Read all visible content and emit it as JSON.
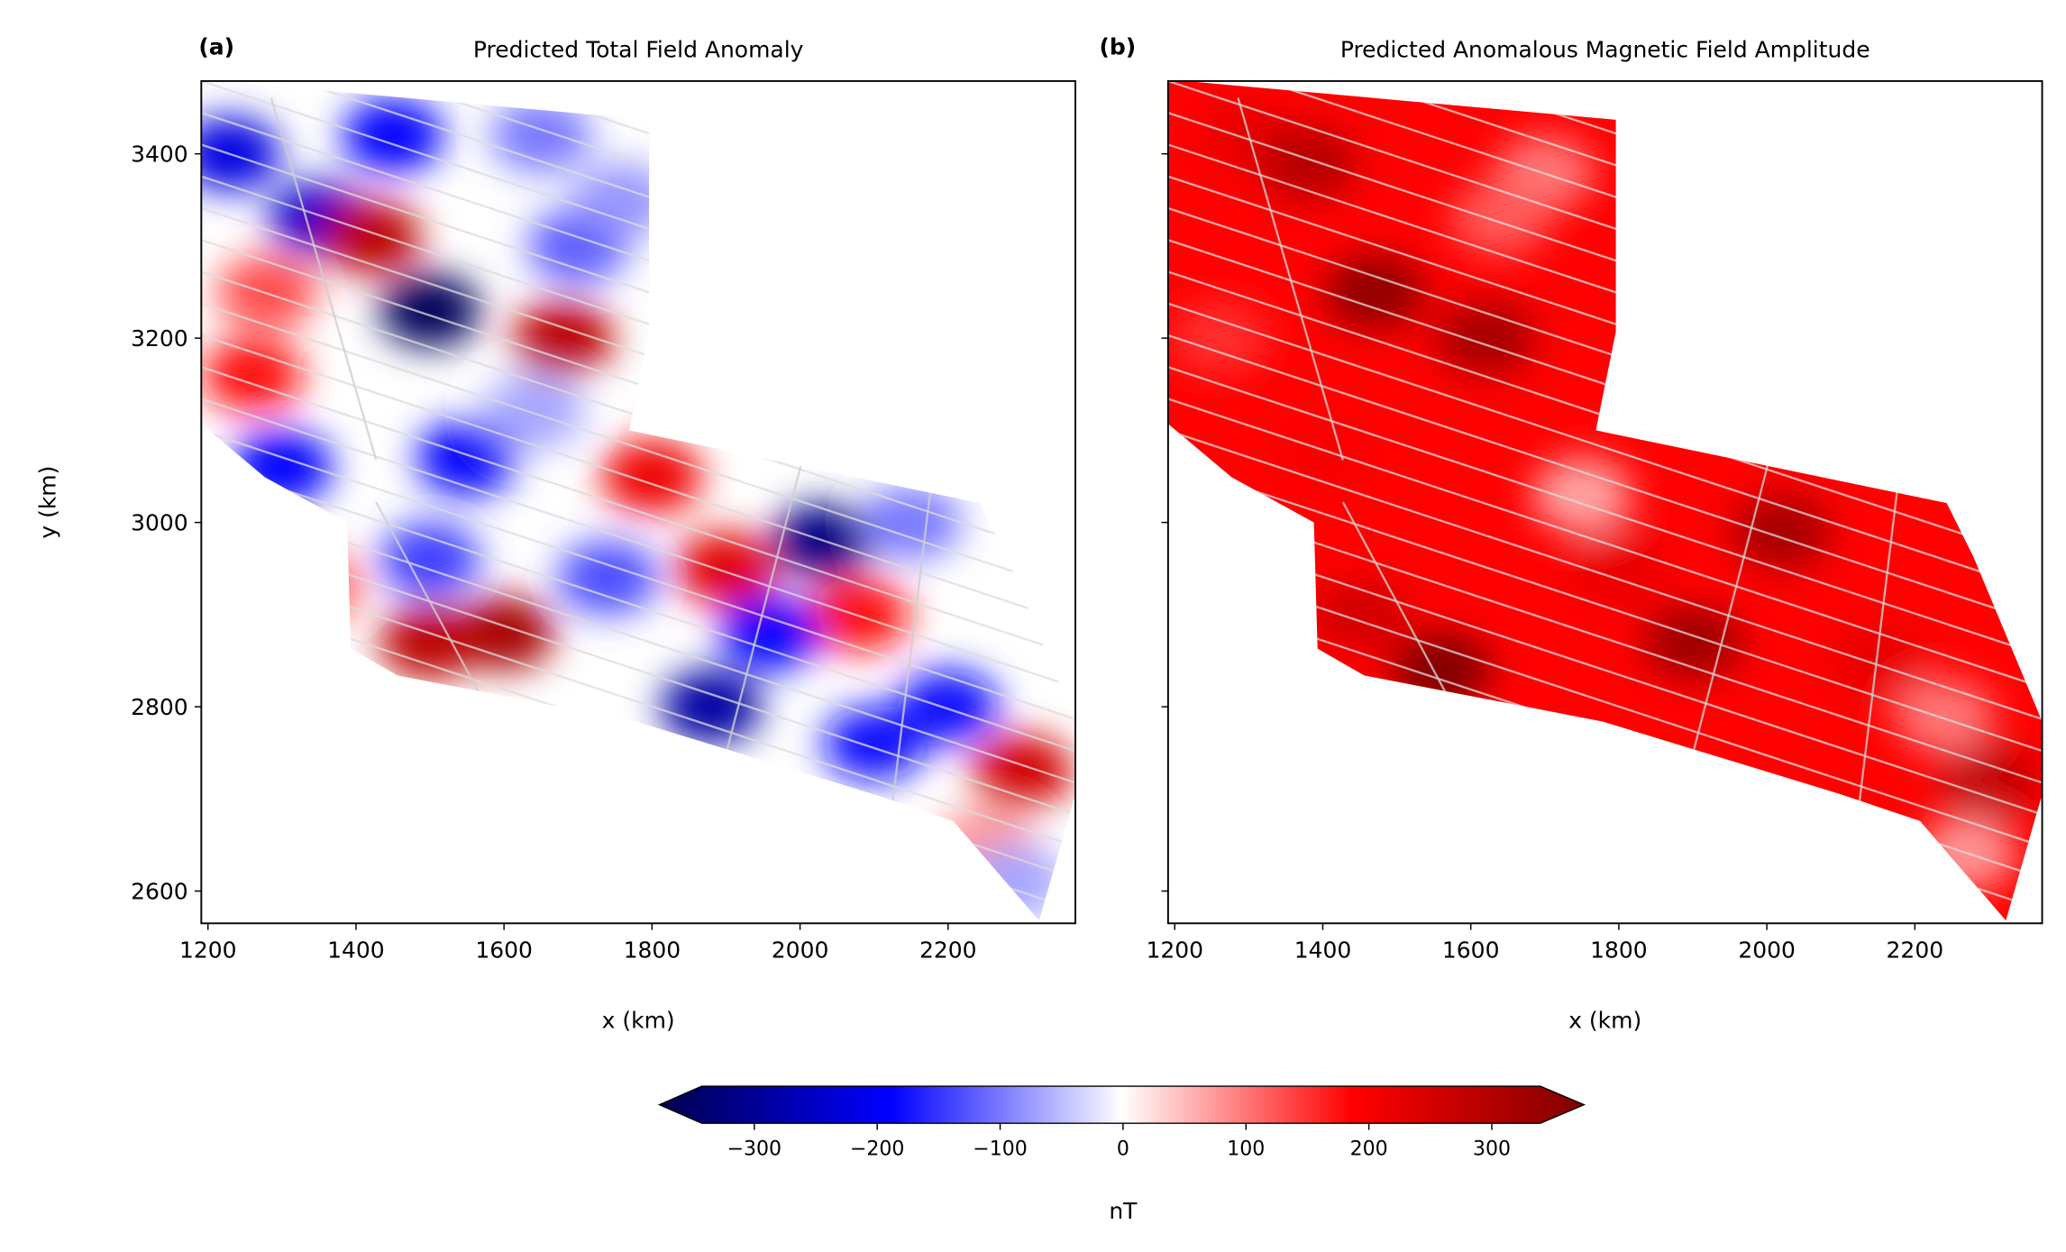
{
  "chart_data": [
    {
      "type": "heatmap",
      "panel_label": "(a)",
      "title": "Predicted Total Field Anomaly",
      "xlabel": "x (km)",
      "ylabel": "y (km)",
      "xlim": [
        1191,
        2372
      ],
      "ylim": [
        2565,
        3479
      ],
      "xticks": [
        1200,
        1400,
        1600,
        1800,
        2000,
        2200
      ],
      "xtick_labels": [
        "1200",
        "1400",
        "1600",
        "1800",
        "2000",
        "2200"
      ],
      "yticks": [
        2600,
        2800,
        3000,
        3200,
        3400
      ],
      "ytick_labels": [
        "2600",
        "2800",
        "3000",
        "3200",
        "3400"
      ],
      "base_value": 0,
      "region": [
        [
          1214,
          3479
        ],
        [
          1796,
          3437
        ],
        [
          1796,
          3207
        ],
        [
          1769,
          3100
        ],
        [
          2243,
          3021
        ],
        [
          2279,
          2963
        ],
        [
          2372,
          2784
        ],
        [
          2372,
          2705
        ],
        [
          2323,
          2568
        ],
        [
          2207,
          2676
        ],
        [
          2100,
          2705
        ],
        [
          1778,
          2784
        ],
        [
          1456,
          2834
        ],
        [
          1393,
          2863
        ],
        [
          1388,
          3000
        ],
        [
          1277,
          3049
        ],
        [
          1191,
          3107
        ],
        [
          1191,
          3479
        ]
      ],
      "field_samples": [
        [
          1500,
          3230,
          -330
        ],
        [
          1680,
          3200,
          260
        ],
        [
          1600,
          2880,
          290
        ],
        [
          1500,
          2870,
          260
        ],
        [
          1880,
          2800,
          -260
        ],
        [
          2030,
          2980,
          -290
        ],
        [
          1350,
          3330,
          -220
        ],
        [
          1450,
          3420,
          -170
        ],
        [
          1260,
          3160,
          160
        ],
        [
          1300,
          3060,
          -170
        ],
        [
          1550,
          3070,
          -170
        ],
        [
          1700,
          3300,
          -110
        ],
        [
          1900,
          2950,
          210
        ],
        [
          2080,
          2900,
          160
        ],
        [
          1960,
          2880,
          -170
        ],
        [
          2300,
          2730,
          230
        ],
        [
          2200,
          2800,
          -160
        ],
        [
          1420,
          3310,
          260
        ],
        [
          1650,
          3420,
          -90
        ],
        [
          1760,
          3350,
          -70
        ],
        [
          1740,
          2940,
          -120
        ],
        [
          2250,
          2650,
          70
        ],
        [
          2290,
          2610,
          -60
        ],
        [
          1800,
          3050,
          190
        ],
        [
          1500,
          2960,
          -130
        ],
        [
          2100,
          2760,
          -160
        ],
        [
          1340,
          2930,
          110
        ],
        [
          1230,
          3400,
          -200
        ],
        [
          1280,
          3250,
          120
        ],
        [
          1640,
          3120,
          -60
        ],
        [
          2150,
          3000,
          -90
        ]
      ]
    },
    {
      "type": "heatmap",
      "panel_label": "(b)",
      "title": "Predicted Anomalous Magnetic Field Amplitude",
      "xlabel": "x (km)",
      "ylabel": "",
      "xlim": [
        1191,
        2372
      ],
      "ylim": [
        2565,
        3479
      ],
      "xticks": [
        1200,
        1400,
        1600,
        1800,
        2000,
        2200
      ],
      "xtick_labels": [
        "1200",
        "1400",
        "1600",
        "1800",
        "2000",
        "2200"
      ],
      "yticks": [
        2600,
        2800,
        3000,
        3200,
        3400
      ],
      "base_value": 170,
      "region": [
        [
          1214,
          3479
        ],
        [
          1796,
          3437
        ],
        [
          1796,
          3207
        ],
        [
          1769,
          3100
        ],
        [
          2243,
          3021
        ],
        [
          2279,
          2963
        ],
        [
          2372,
          2784
        ],
        [
          2372,
          2705
        ],
        [
          2323,
          2568
        ],
        [
          2207,
          2676
        ],
        [
          2100,
          2705
        ],
        [
          1778,
          2784
        ],
        [
          1456,
          2834
        ],
        [
          1393,
          2863
        ],
        [
          1388,
          3000
        ],
        [
          1277,
          3049
        ],
        [
          1191,
          3107
        ],
        [
          1191,
          3479
        ]
      ],
      "field_samples": [
        [
          1470,
          3250,
          320
        ],
        [
          1620,
          3200,
          290
        ],
        [
          1560,
          2840,
          340
        ],
        [
          1900,
          2870,
          300
        ],
        [
          2020,
          2990,
          290
        ],
        [
          1700,
          3380,
          90
        ],
        [
          1300,
          3420,
          200
        ],
        [
          1260,
          3200,
          140
        ],
        [
          2300,
          2720,
          250
        ],
        [
          2270,
          2640,
          70
        ],
        [
          1800,
          2950,
          200
        ],
        [
          1400,
          3070,
          180
        ],
        [
          1750,
          3030,
          60
        ],
        [
          1640,
          3330,
          110
        ],
        [
          1450,
          2900,
          230
        ],
        [
          2150,
          2850,
          200
        ],
        [
          2240,
          2790,
          90
        ],
        [
          1380,
          3390,
          270
        ]
      ]
    }
  ],
  "colorbar": {
    "label": "nT",
    "vmin": -341,
    "vmax": 341,
    "ticks": [
      -300,
      -200,
      -100,
      0,
      100,
      200,
      300
    ],
    "tick_labels": [
      "−300",
      "−200",
      "−100",
      "0",
      "100",
      "200",
      "300"
    ],
    "extend": "both",
    "colormap": [
      "#00004d",
      "#0000ff",
      "#ffffff",
      "#ff0000",
      "#800000"
    ]
  }
}
